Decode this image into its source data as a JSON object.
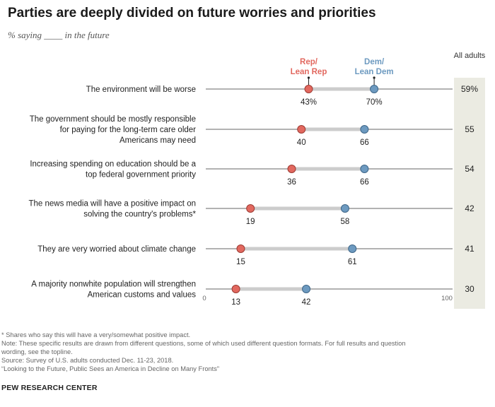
{
  "title": "Parties are deeply divided on future worries and priorities",
  "subtitle": "% saying ____ in the future",
  "chart_data": {
    "type": "dot",
    "title": "Parties are deeply divided on future worries and priorities",
    "subtitle": "% saying ____ in the future",
    "xlim": [
      0,
      100
    ],
    "x_tick_labels": [
      "0",
      "100"
    ],
    "legend": {
      "rep": "Rep/\nLean Rep",
      "dem": "Dem/\nLean Dem",
      "all": "All adults"
    },
    "colors": {
      "rep": "#e2685f",
      "dem": "#6d9ac0",
      "all_band": "#ebebe2",
      "connector": "#cccccc",
      "axis": "#666666"
    },
    "rows": [
      {
        "label": "The environment will be worse",
        "rep": 43,
        "dem": 70,
        "all": 59,
        "rep_label": "43%",
        "dem_label": "70%",
        "all_label": "59%"
      },
      {
        "label": "The government should be mostly responsible\nfor paying for the long-term care older\nAmericans may need",
        "rep": 40,
        "dem": 66,
        "all": 55,
        "rep_label": "40",
        "dem_label": "66",
        "all_label": "55"
      },
      {
        "label": "Increasing spending on education should be a\ntop federal government priority",
        "rep": 36,
        "dem": 66,
        "all": 54,
        "rep_label": "36",
        "dem_label": "66",
        "all_label": "54"
      },
      {
        "label": "The news media will have a positive impact on\nsolving the country's problems*",
        "rep": 19,
        "dem": 58,
        "all": 42,
        "rep_label": "19",
        "dem_label": "58",
        "all_label": "42"
      },
      {
        "label": "They are very worried about climate change",
        "rep": 15,
        "dem": 61,
        "all": 41,
        "rep_label": "15",
        "dem_label": "61",
        "all_label": "41"
      },
      {
        "label": "A majority nonwhite population will strengthen\nAmerican customs and values",
        "rep": 13,
        "dem": 42,
        "all": 30,
        "rep_label": "13",
        "dem_label": "42",
        "all_label": "30"
      }
    ]
  },
  "footer": {
    "lines": [
      "* Shares who say this will have a very/somewhat positive impact.",
      "Note: These specific results are drawn from different questions, some of which used different question formats. For full results and question",
      "wording, see the topline.",
      "Source: Survey of U.S. adults conducted Dec. 11-23, 2018.",
      "“Looking to the Future, Public Sees an America in Decline on Many Fronts”"
    ],
    "brand": "PEW RESEARCH CENTER"
  }
}
